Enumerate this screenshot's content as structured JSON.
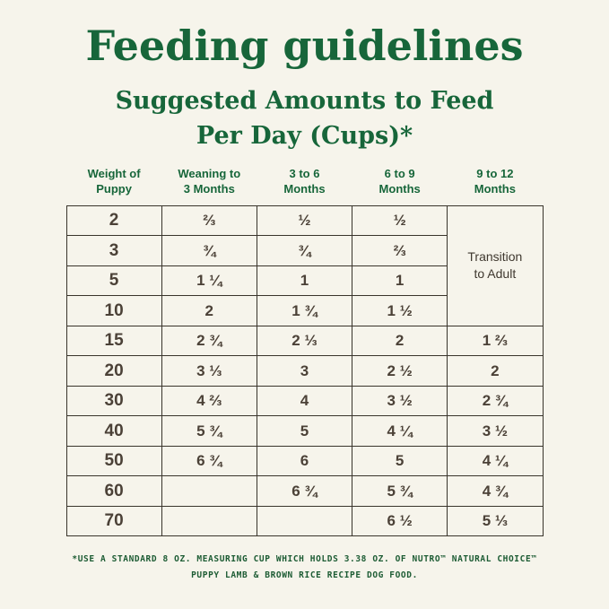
{
  "page": {
    "title": "Feeding guidelines",
    "subtitle": "Suggested Amounts to Feed\nPer Day (Cups)*"
  },
  "table": {
    "headers": [
      "Weight of\nPuppy",
      "Weaning to\n3 Months",
      "3 to 6\nMonths",
      "6 to 9\nMonths",
      "9 to 12\nMonths"
    ],
    "transition_label": "Transition\nto Adult",
    "transition_rowspan": 4,
    "rows": [
      {
        "weight": "2",
        "amounts": [
          "⅔",
          "½",
          "½"
        ]
      },
      {
        "weight": "3",
        "amounts": [
          "¾",
          "¾",
          "⅔"
        ]
      },
      {
        "weight": "5",
        "amounts": [
          "1 ¼",
          "1",
          "1"
        ]
      },
      {
        "weight": "10",
        "amounts": [
          "2",
          "1 ¾",
          "1 ½"
        ]
      },
      {
        "weight": "15",
        "amounts": [
          "2 ¾",
          "2 ⅓",
          "2",
          "1 ⅔"
        ]
      },
      {
        "weight": "20",
        "amounts": [
          "3 ⅓",
          "3",
          "2 ½",
          "2"
        ]
      },
      {
        "weight": "30",
        "amounts": [
          "4 ⅔",
          "4",
          "3 ½",
          "2 ¾"
        ]
      },
      {
        "weight": "40",
        "amounts": [
          "5 ¾",
          "5",
          "4 ¼",
          "3 ½"
        ]
      },
      {
        "weight": "50",
        "amounts": [
          "6 ¾",
          "6",
          "5",
          "4 ¼"
        ]
      },
      {
        "weight": "60",
        "amounts": [
          "",
          "6 ¾",
          "5 ¾",
          "4 ¾"
        ]
      },
      {
        "weight": "70",
        "amounts": [
          "",
          "",
          "6 ½",
          "5 ⅓"
        ]
      }
    ]
  },
  "footnote": {
    "line1": "*USE A STANDARD 8 OZ. MEASURING CUP WHICH HOLDS 3.38 OZ. OF NUTRO™ NATURAL CHOICE™",
    "line2": "PUPPY LAMB & BROWN RICE RECIPE DOG FOOD."
  },
  "chart_data": {
    "type": "table",
    "title": "Feeding guidelines",
    "subtitle": "Suggested Amounts to Feed Per Day (Cups)*",
    "columns": [
      "Weight of Puppy",
      "Weaning to 3 Months",
      "3 to 6 Months",
      "6 to 9 Months",
      "9 to 12 Months"
    ],
    "rows": [
      [
        "2",
        "⅔",
        "½",
        "½",
        "Transition to Adult"
      ],
      [
        "3",
        "¾",
        "¾",
        "⅔",
        "Transition to Adult"
      ],
      [
        "5",
        "1 ¼",
        "1",
        "1",
        "Transition to Adult"
      ],
      [
        "10",
        "2",
        "1 ¾",
        "1 ½",
        "Transition to Adult"
      ],
      [
        "15",
        "2 ¾",
        "2 ⅓",
        "2",
        "1 ⅔"
      ],
      [
        "20",
        "3 ⅓",
        "3",
        "2 ½",
        "2"
      ],
      [
        "30",
        "4 ⅔",
        "4",
        "3 ½",
        "2 ¾"
      ],
      [
        "40",
        "5 ¾",
        "5",
        "4 ¼",
        "3 ½"
      ],
      [
        "50",
        "6 ¾",
        "6",
        "5",
        "4 ¼"
      ],
      [
        "60",
        "",
        "6 ¾",
        "5 ¾",
        "4 ¾"
      ],
      [
        "70",
        "",
        "",
        "6 ½",
        "5 ⅓"
      ]
    ],
    "annotations": "*USE A STANDARD 8 OZ. MEASURING CUP WHICH HOLDS 3.38 OZ. OF NUTRO™ NATURAL CHOICE™ PUPPY LAMB & BROWN RICE RECIPE DOG FOOD."
  }
}
